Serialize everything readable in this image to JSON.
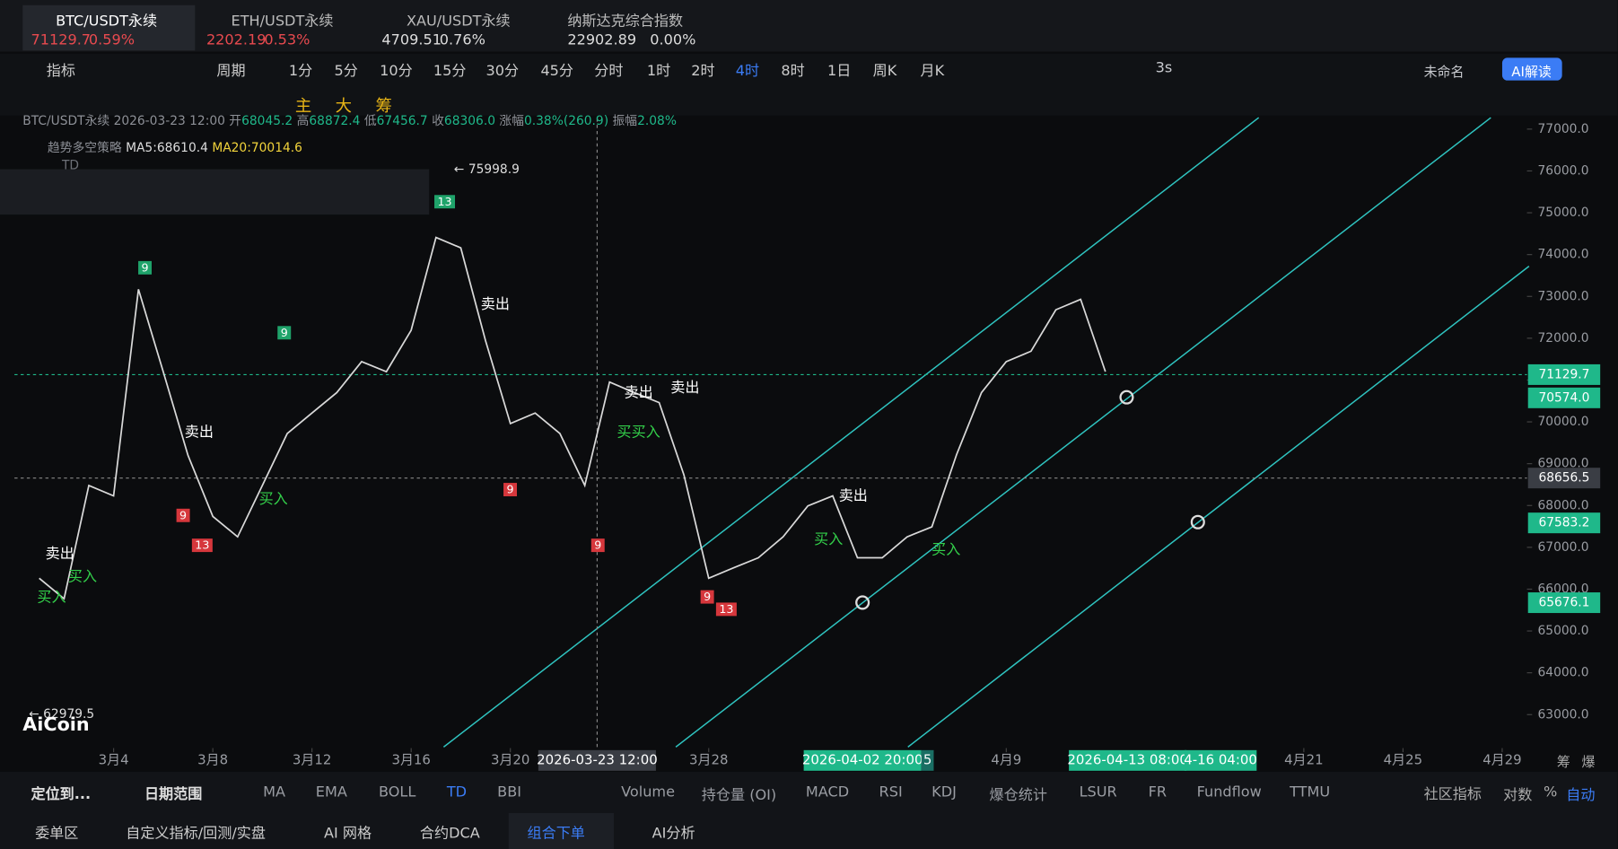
{
  "tabs": [
    {
      "symbol": "BTC/USDT永续",
      "price": "71129.7",
      "change": "0.59%"
    },
    {
      "symbol": "ETH/USDT永续",
      "price": "2202.19",
      "change": "0.53%"
    },
    {
      "symbol": "XAU/USDT永续",
      "price": "4709.51",
      "change": "0.76%"
    },
    {
      "symbol": "纳斯达克综合指数",
      "price": "22902.89",
      "change": "0.00%"
    }
  ],
  "toolbar": [
    "指标",
    "周期",
    "1分",
    "5分",
    "10分",
    "15分",
    "30分",
    "45分",
    "分时",
    "1时",
    "2时",
    "4时",
    "8时",
    "1日",
    "周K",
    "月K"
  ],
  "right_toolbar": {
    "refresh": "3s",
    "layout": "未命名",
    "ai": "AI解读"
  },
  "drawing_tools": [
    "主",
    "大",
    "筹"
  ],
  "info": {
    "symbol": "BTC/USDT永续",
    "time": "2026-03-23 12:00",
    "open_label": "开",
    "open": "68045.2",
    "high_label": "高",
    "high": "68872.4",
    "low_label": "低",
    "low": "67456.7",
    "close_label": "收",
    "close": "68306.0",
    "change_label": "涨幅",
    "change": "0.38%(260.9)",
    "amp_label": "振幅",
    "amp": "2.08%"
  },
  "strategy": {
    "name": "趋势多空策略",
    "ma5": "MA5:68610.4",
    "ma20": "MA20:70014.6",
    "td": "TD"
  },
  "chart_data": {
    "type": "line",
    "color": "#d9d9d9",
    "x": [
      "2026-03-01",
      "2026-03-02",
      "2026-03-03",
      "2026-03-04",
      "2026-03-05",
      "2026-03-06",
      "2026-03-07",
      "2026-03-08",
      "2026-03-09",
      "2026-03-10",
      "2026-03-11",
      "2026-03-12",
      "2026-03-13",
      "2026-03-14",
      "2026-03-15",
      "2026-03-16",
      "2026-03-17",
      "2026-03-18",
      "2026-03-19",
      "2026-03-20",
      "2026-03-21",
      "2026-03-22",
      "2026-03-23",
      "2026-03-24",
      "2026-03-25",
      "2026-03-26",
      "2026-03-27",
      "2026-03-28",
      "2026-03-29",
      "2026-03-30",
      "2026-03-31",
      "2026-04-01",
      "2026-04-02",
      "2026-04-03",
      "2026-04-04",
      "2026-04-05",
      "2026-04-06",
      "2026-04-07",
      "2026-04-08",
      "2026-04-09",
      "2026-04-10",
      "2026-04-11",
      "2026-04-12",
      "2026-04-13"
    ],
    "values": [
      66260,
      65770,
      68480,
      68230,
      73170,
      71200,
      69200,
      67740,
      67250,
      68480,
      69720,
      70210,
      70700,
      71440,
      71200,
      72190,
      74410,
      74160,
      71940,
      69960,
      70210,
      69720,
      68480,
      70950,
      70700,
      70460,
      68730,
      66260,
      66510,
      66750,
      67250,
      67990,
      68230,
      66750,
      66750,
      67250,
      67490,
      69220,
      70700,
      71440,
      71690,
      72680,
      72930,
      71200
    ],
    "xlim": [
      "2026-02-28",
      "2026-04-30"
    ],
    "ylim": [
      62200,
      77250
    ],
    "yticks": [
      {
        "value": 63000,
        "label": "63000.0"
      },
      {
        "value": 64000,
        "label": "64000.0"
      },
      {
        "value": 65000,
        "label": "65000.0"
      },
      {
        "value": 66000,
        "label": "66000.0"
      },
      {
        "value": 67000,
        "label": "67000.0"
      },
      {
        "value": 68000,
        "label": "68000.0"
      },
      {
        "value": 69000,
        "label": "69000.0"
      },
      {
        "value": 70000,
        "label": "70000.0"
      },
      {
        "value": 71000,
        "label": "71000.0"
      },
      {
        "value": 72000,
        "label": "72000.0"
      },
      {
        "value": 73000,
        "label": "73000.0"
      },
      {
        "value": 74000,
        "label": "74000.0"
      },
      {
        "value": 75000,
        "label": "75000.0"
      },
      {
        "value": 76000,
        "label": "76000.0"
      },
      {
        "value": 77000,
        "label": "77000.0"
      }
    ],
    "xticks": [
      {
        "value": "2026-03-04",
        "label": "3月4"
      },
      {
        "value": "2026-03-08",
        "label": "3月8"
      },
      {
        "value": "2026-03-12",
        "label": "3月12"
      },
      {
        "value": "2026-03-16",
        "label": "3月16"
      },
      {
        "value": "2026-03-20",
        "label": "3月20"
      },
      {
        "value": "2026-03-28",
        "label": "3月28"
      },
      {
        "value": "2026-04-09",
        "label": "4月9"
      },
      {
        "value": "2026-04-21",
        "label": "4月21"
      },
      {
        "value": "2026-04-25",
        "label": "4月25"
      },
      {
        "value": "2026-04-29",
        "label": "4月29"
      }
    ],
    "price_tags": [
      {
        "value": 71129.7,
        "label": "71129.7",
        "color": "#1fb88a"
      },
      {
        "value": 70574.0,
        "label": "70574.0",
        "color": "#1fb88a"
      },
      {
        "value": 68656.5,
        "label": "68656.5",
        "color": "#3a3d44"
      },
      {
        "value": 67583.2,
        "label": "67583.2",
        "color": "#1fb88a"
      },
      {
        "value": 65676.1,
        "label": "65676.1",
        "color": "#1fb88a"
      }
    ],
    "crosshair": {
      "value": "2026-03-23T12:00",
      "label": "2026-03-23 12:00"
    },
    "range_labels": [
      "2026-04-02 20:00",
      "5",
      "2026-04-13 08:00",
      "4-16 04:00"
    ],
    "high_marker": "← 75998.9",
    "low_marker": "← 62979.5"
  },
  "annotations": {
    "sell": "卖出",
    "buy": "买入",
    "buy2": "买买入",
    "nine": "9",
    "thirteen": "13"
  },
  "logo": "AiCoin",
  "indicator_bar": {
    "locate": "定位到...",
    "range": "日期范围",
    "items": [
      "MA",
      "EMA",
      "BOLL",
      "TD",
      "BBI",
      "Volume",
      "持仓量 (OI)",
      "MACD",
      "RSI",
      "KDJ",
      "爆仓统计",
      "LSUR",
      "FR",
      "Fundflow",
      "TTMU"
    ],
    "community": "社区指标",
    "modes": [
      "对数",
      "%",
      "自动"
    ],
    "side": [
      "筹",
      "爆"
    ]
  },
  "bottom_tabs": [
    "委单区",
    "自定义指标/回测/实盘",
    "AI 网格",
    "合约DCA",
    "组合下单",
    "AI分析"
  ]
}
